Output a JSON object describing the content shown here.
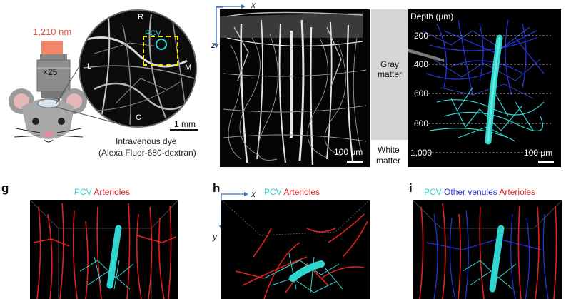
{
  "colors": {
    "laser": "#f0876a",
    "laser_text": "#e8503a",
    "pcv": "#2fd6d0",
    "arteriole": "#e32020",
    "venule": "#2233d8",
    "roi_box": "#ffe100",
    "gray_band": "#d6d6d6"
  },
  "panel_a": {
    "laser_label": "1,210 nm",
    "objective_label": "×25",
    "pcv_label": "PCV",
    "dir_r": "R",
    "dir_l": "L",
    "dir_m": "M",
    "dir_c": "C",
    "scale_label": "1 mm",
    "caption_line1": "Intravenous dye",
    "caption_line2": "(Alexa Fluor-680-dextran)"
  },
  "panel_b": {
    "axis_x": "x",
    "axis_z": "z",
    "scale_label": "100 μm"
  },
  "panel_c": {
    "gray_matter": "Gray matter",
    "white_matter_1": "White",
    "white_matter_2": "matter",
    "depth_title": "Depth (μm)",
    "depths": [
      "200",
      "400",
      "600",
      "800",
      "1,000"
    ],
    "scale_label": "100 μm"
  },
  "panel_g": {
    "letter": "g",
    "legend_pcv": "PCV",
    "legend_arterioles": "Arterioles"
  },
  "panel_h": {
    "letter": "h",
    "legend_pcv": "PCV",
    "legend_arterioles": "Arterioles",
    "axis_x": "x",
    "axis_y": "y"
  },
  "panel_i": {
    "letter": "i",
    "legend_pcv": "PCV",
    "legend_venules": "Other venules",
    "legend_arterioles": "Arterioles"
  }
}
